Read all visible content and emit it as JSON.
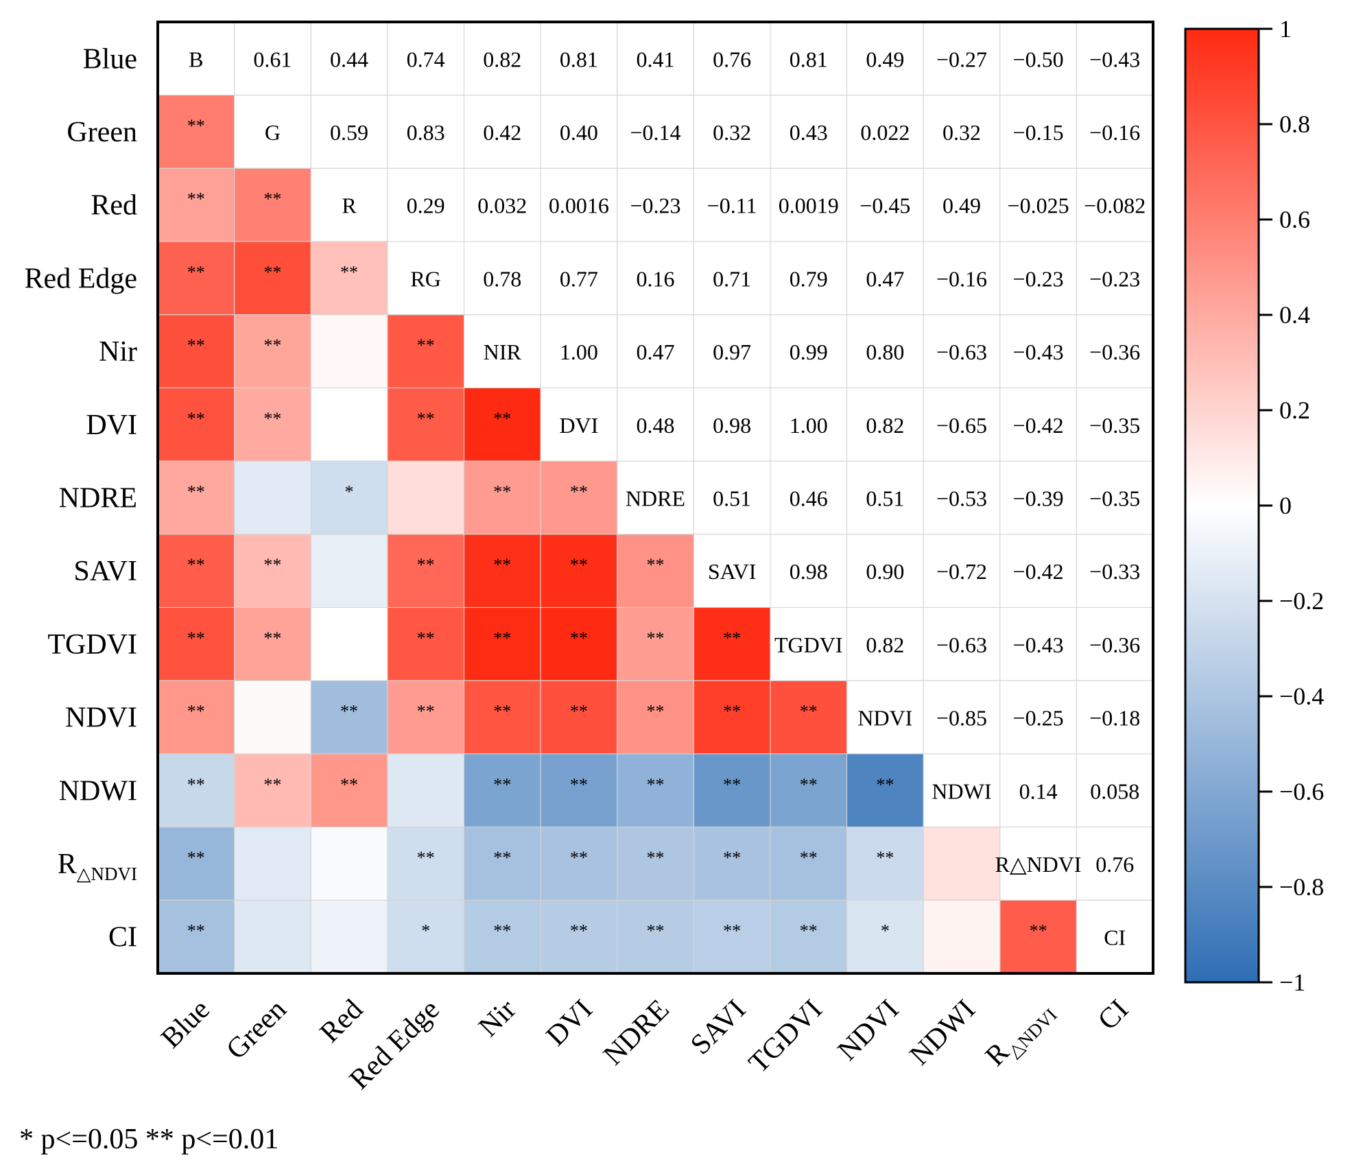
{
  "chart_data": {
    "type": "heatmap",
    "variables": [
      "Blue",
      "Green",
      "Red",
      "Red Edge",
      "Nir",
      "DVI",
      "NDRE",
      "SAVI",
      "TGDVI",
      "NDVI",
      "NDWI",
      "R△NDVI",
      "CI"
    ],
    "row_labels": [
      {
        "main": "Blue",
        "sub": ""
      },
      {
        "main": "Green",
        "sub": ""
      },
      {
        "main": "Red",
        "sub": ""
      },
      {
        "main": "Red Edge",
        "sub": ""
      },
      {
        "main": "Nir",
        "sub": ""
      },
      {
        "main": "DVI",
        "sub": ""
      },
      {
        "main": "NDRE",
        "sub": ""
      },
      {
        "main": "SAVI",
        "sub": ""
      },
      {
        "main": "TGDVI",
        "sub": ""
      },
      {
        "main": "NDVI",
        "sub": ""
      },
      {
        "main": "NDWI",
        "sub": ""
      },
      {
        "main": "R",
        "sub": "△NDVI"
      },
      {
        "main": "CI",
        "sub": ""
      }
    ],
    "col_labels": [
      {
        "main": "Blue",
        "sub": ""
      },
      {
        "main": "Green",
        "sub": ""
      },
      {
        "main": "Red",
        "sub": ""
      },
      {
        "main": "Red Edge",
        "sub": ""
      },
      {
        "main": "Nir",
        "sub": ""
      },
      {
        "main": "DVI",
        "sub": ""
      },
      {
        "main": "NDRE",
        "sub": ""
      },
      {
        "main": "SAVI",
        "sub": ""
      },
      {
        "main": "TGDVI",
        "sub": ""
      },
      {
        "main": "NDVI",
        "sub": ""
      },
      {
        "main": "NDWI",
        "sub": ""
      },
      {
        "main": "R",
        "sub": "△NDVI"
      },
      {
        "main": "CI",
        "sub": ""
      }
    ],
    "diagonal_labels": [
      "B",
      "G",
      "R",
      "RG",
      "NIR",
      "DVI",
      "NDRE",
      "SAVI",
      "TGDVI",
      "NDVI",
      "NDWI",
      "R△NDVI",
      "CI"
    ],
    "upper_values": [
      [
        "",
        "0.61",
        "0.44",
        "0.74",
        "0.82",
        "0.81",
        "0.41",
        "0.76",
        "0.81",
        "0.49",
        "−0.27",
        "−0.50",
        "−0.43"
      ],
      [
        "",
        "",
        "0.59",
        "0.83",
        "0.42",
        "0.40",
        "−0.14",
        "0.32",
        "0.43",
        "0.022",
        "0.32",
        "−0.15",
        "−0.16"
      ],
      [
        "",
        "",
        "",
        "0.29",
        "0.032",
        "0.0016",
        "−0.23",
        "−0.11",
        "0.0019",
        "−0.45",
        "0.49",
        "−0.025",
        "−0.082"
      ],
      [
        "",
        "",
        "",
        "",
        "0.78",
        "0.77",
        "0.16",
        "0.71",
        "0.79",
        "0.47",
        "−0.16",
        "−0.23",
        "−0.23"
      ],
      [
        "",
        "",
        "",
        "",
        "",
        "1.00",
        "0.47",
        "0.97",
        "0.99",
        "0.80",
        "−0.63",
        "−0.43",
        "−0.36"
      ],
      [
        "",
        "",
        "",
        "",
        "",
        "",
        "0.48",
        "0.98",
        "1.00",
        "0.82",
        "−0.65",
        "−0.42",
        "−0.35"
      ],
      [
        "",
        "",
        "",
        "",
        "",
        "",
        "",
        "0.51",
        "0.46",
        "0.51",
        "−0.53",
        "−0.39",
        "−0.35"
      ],
      [
        "",
        "",
        "",
        "",
        "",
        "",
        "",
        "",
        "0.98",
        "0.90",
        "−0.72",
        "−0.42",
        "−0.33"
      ],
      [
        "",
        "",
        "",
        "",
        "",
        "",
        "",
        "",
        "",
        "0.82",
        "−0.63",
        "−0.43",
        "−0.36"
      ],
      [
        "",
        "",
        "",
        "",
        "",
        "",
        "",
        "",
        "",
        "",
        "−0.85",
        "−0.25",
        "−0.18"
      ],
      [
        "",
        "",
        "",
        "",
        "",
        "",
        "",
        "",
        "",
        "",
        "",
        "0.14",
        "0.058"
      ],
      [
        "",
        "",
        "",
        "",
        "",
        "",
        "",
        "",
        "",
        "",
        "",
        "",
        "0.76"
      ],
      [
        "",
        "",
        "",
        "",
        "",
        "",
        "",
        "",
        "",
        "",
        "",
        "",
        ""
      ]
    ],
    "significance_lower": [
      [
        "",
        "",
        "",
        "",
        "",
        "",
        "",
        "",
        "",
        "",
        "",
        "",
        ""
      ],
      [
        "**",
        "",
        "",
        "",
        "",
        "",
        "",
        "",
        "",
        "",
        "",
        "",
        ""
      ],
      [
        "**",
        "**",
        "",
        "",
        "",
        "",
        "",
        "",
        "",
        "",
        "",
        "",
        ""
      ],
      [
        "**",
        "**",
        "**",
        "",
        "",
        "",
        "",
        "",
        "",
        "",
        "",
        "",
        ""
      ],
      [
        "**",
        "**",
        "",
        "**",
        "",
        "",
        "",
        "",
        "",
        "",
        "",
        "",
        ""
      ],
      [
        "**",
        "**",
        "",
        "**",
        "**",
        "",
        "",
        "",
        "",
        "",
        "",
        "",
        ""
      ],
      [
        "**",
        "",
        "*",
        "",
        "**",
        "**",
        "",
        "",
        "",
        "",
        "",
        "",
        ""
      ],
      [
        "**",
        "**",
        "",
        "**",
        "**",
        "**",
        "**",
        "",
        "",
        "",
        "",
        "",
        ""
      ],
      [
        "**",
        "**",
        "",
        "**",
        "**",
        "**",
        "**",
        "**",
        "",
        "",
        "",
        "",
        ""
      ],
      [
        "**",
        "",
        "**",
        "**",
        "**",
        "**",
        "**",
        "**",
        "**",
        "",
        "",
        "",
        ""
      ],
      [
        "**",
        "**",
        "**",
        "",
        "**",
        "**",
        "**",
        "**",
        "**",
        "**",
        "",
        "",
        ""
      ],
      [
        "**",
        "",
        "",
        "**",
        "**",
        "**",
        "**",
        "**",
        "**",
        "**",
        "",
        "",
        ""
      ],
      [
        "**",
        "",
        "",
        "*",
        "**",
        "**",
        "**",
        "**",
        "**",
        "*",
        "",
        "**",
        ""
      ]
    ],
    "colorbar": {
      "ticks": [
        "1",
        "0.8",
        "0.6",
        "0.4",
        "0.2",
        "0",
        "−0.2",
        "−0.4",
        "−0.6",
        "−0.8",
        "−1"
      ],
      "range": [
        -1,
        1
      ],
      "color_low": "#2f6eb5",
      "color_mid": "#ffffff",
      "color_high": "#ff2a12"
    },
    "legend_note": "* p<=0.05  ** p<=0.01"
  }
}
